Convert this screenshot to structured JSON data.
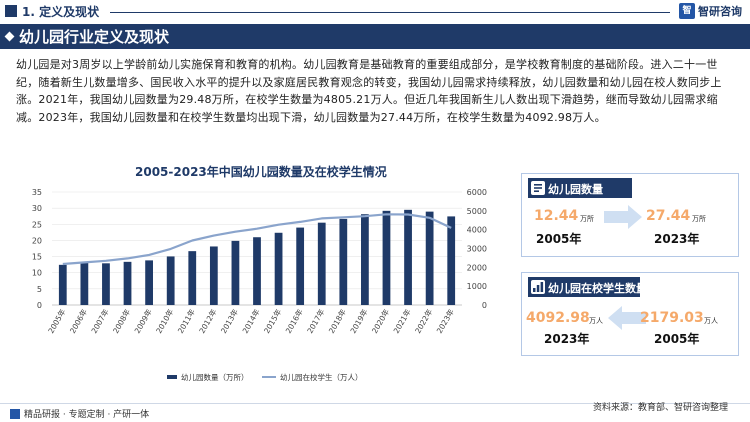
{
  "section": {
    "title": "1. 定义及现状"
  },
  "brand": {
    "logo_mark": "智",
    "logo_text": "智研咨询"
  },
  "header": {
    "title": "幼儿园行业定义及现状"
  },
  "intro": "幼儿园是对3周岁以上学龄前幼儿实施保育和教育的机构。幼儿园教育是基础教育的重要组成部分，是学校教育制度的基础阶段。进入二十一世纪，随着新生儿数量增多、国民收入水平的提升以及家庭居民教育观念的转变，我国幼儿园需求持续释放，幼儿园数量和幼儿园在校人数同步上涨。2021年，我国幼儿园数量为29.48万所，在校学生数量为4805.21万人。但近几年我国新生儿人数出现下滑趋势，继而导致幼儿园需求缩减。2023年，我国幼儿园数量和在校学生数量均出现下滑，幼儿园数量为27.44万所，在校学生数量为4092.98万人。",
  "chart_data": {
    "type": "bar",
    "title": "2005-2023年中国幼儿园数量及在校学生情况",
    "categories": [
      "2005年",
      "2006年",
      "2007年",
      "2008年",
      "2009年",
      "2010年",
      "2011年",
      "2012年",
      "2013年",
      "2014年",
      "2015年",
      "2016年",
      "2017年",
      "2018年",
      "2019年",
      "2020年",
      "2021年",
      "2022年",
      "2023年"
    ],
    "series": [
      {
        "name": "幼儿园数量（万所）",
        "kind": "bar",
        "axis": "left",
        "values": [
          12.44,
          13.05,
          12.91,
          13.37,
          13.82,
          15.04,
          16.68,
          18.13,
          19.86,
          20.99,
          22.37,
          23.98,
          25.5,
          26.67,
          28.12,
          29.17,
          29.48,
          28.92,
          27.44
        ]
      },
      {
        "name": "幼儿园在校学生（万人）",
        "kind": "line",
        "axis": "right",
        "values": [
          2179.03,
          2263.85,
          2348.83,
          2474.96,
          2657.81,
          2976.67,
          3424.45,
          3685.76,
          3894.69,
          4050.71,
          4264.83,
          4413.86,
          4600.14,
          4656.42,
          4713.88,
          4818.26,
          4805.21,
          4627.55,
          4092.98
        ]
      }
    ],
    "y_left": {
      "min": 0,
      "max": 35,
      "ticks": [
        0,
        5,
        10,
        15,
        20,
        25,
        30,
        35
      ]
    },
    "y_right": {
      "min": 0,
      "max": 6000,
      "ticks": [
        0,
        1000,
        2000,
        3000,
        4000,
        5000,
        6000
      ]
    },
    "legend_position": "bottom",
    "colors": {
      "bar": "#1f3a68",
      "line": "#8aa4cc"
    }
  },
  "cards": [
    {
      "title": "幼儿园数量",
      "left": {
        "value": "12.44",
        "unit": "万所",
        "year": "2005年"
      },
      "right": {
        "value": "27.44",
        "unit": "万所",
        "year": "2023年"
      }
    },
    {
      "title": "幼儿园在校学生数量",
      "left": {
        "value": "4092.98",
        "unit": "万人",
        "year": "2023年"
      },
      "right": {
        "value": "2179.03",
        "unit": "万人",
        "year": "2005年"
      }
    }
  ],
  "footer": {
    "left": "精品研报 · 专题定制 · 产研一体",
    "source": "资料来源：教育部、智研咨询整理"
  },
  "colors": {
    "navy": "#1f3a68",
    "accent_orange": "#f5a96a",
    "line_blue": "#8aa4cc"
  }
}
